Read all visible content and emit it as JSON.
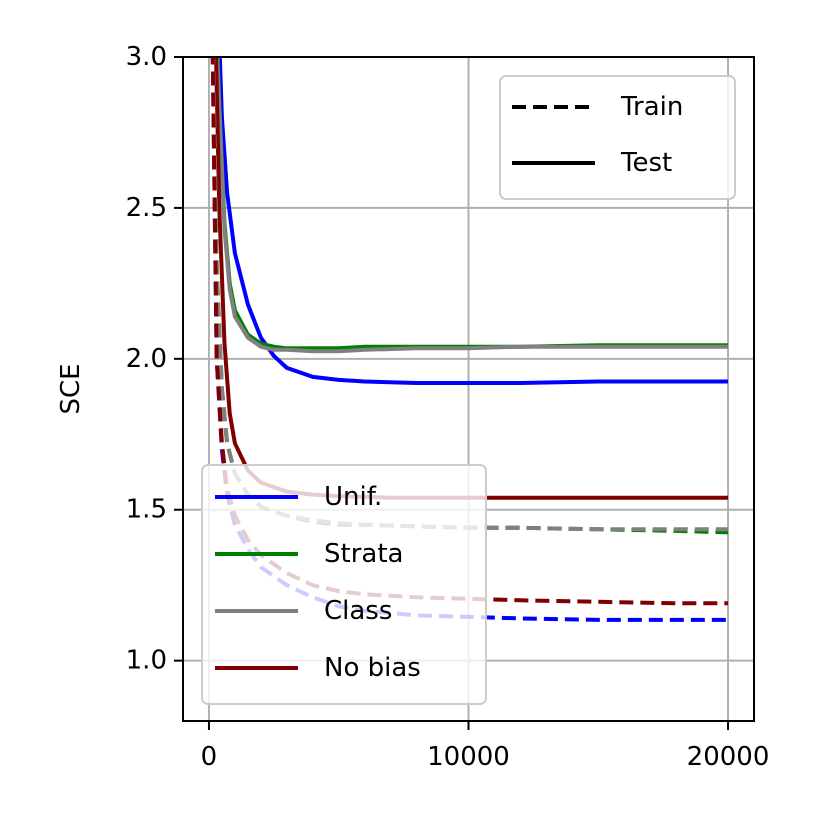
{
  "chart_data": {
    "type": "line",
    "title": "",
    "xlabel": "",
    "ylabel": "SCE",
    "xlim": [
      -1000,
      21000
    ],
    "ylim": [
      0.8,
      3.0
    ],
    "xticks": [
      0,
      10000,
      20000
    ],
    "yticks": [
      1.0,
      1.5,
      2.0,
      2.5,
      3.0
    ],
    "xtick_labels": [
      "0",
      "10000",
      "20000"
    ],
    "ytick_labels": [
      "1.0",
      "1.5",
      "2.0",
      "2.5",
      "3.0"
    ],
    "grid": true,
    "style_legend": {
      "placement": "top-right",
      "entries": [
        {
          "label": "Train",
          "dash": "dashed"
        },
        {
          "label": "Test",
          "dash": "solid"
        }
      ]
    },
    "color_legend": {
      "placement": "bottom-left",
      "entries": [
        {
          "label": "Unif.",
          "color": "#0000ff"
        },
        {
          "label": "Strata",
          "color": "#008000"
        },
        {
          "label": "Class",
          "color": "#808080"
        },
        {
          "label": "No bias",
          "color": "#800000"
        }
      ]
    },
    "series": [
      {
        "name": "Unif.",
        "split": "Test",
        "color": "#0000ff",
        "x": [
          300,
          500,
          700,
          1000,
          1500,
          2000,
          2500,
          3000,
          4000,
          5000,
          6000,
          8000,
          10000,
          12000,
          15000,
          18000,
          20000
        ],
        "y": [
          3.3,
          2.8,
          2.55,
          2.35,
          2.18,
          2.07,
          2.01,
          1.97,
          1.94,
          1.93,
          1.925,
          1.92,
          1.92,
          1.92,
          1.925,
          1.925,
          1.925
        ]
      },
      {
        "name": "Strata",
        "split": "Test",
        "color": "#008000",
        "x": [
          200,
          400,
          600,
          800,
          1000,
          1500,
          2000,
          2500,
          3000,
          4000,
          5000,
          6000,
          8000,
          10000,
          12000,
          15000,
          18000,
          20000
        ],
        "y": [
          3.3,
          2.85,
          2.45,
          2.25,
          2.16,
          2.08,
          2.05,
          2.04,
          2.035,
          2.035,
          2.035,
          2.04,
          2.04,
          2.04,
          2.04,
          2.045,
          2.045,
          2.045
        ]
      },
      {
        "name": "Class",
        "split": "Test",
        "color": "#808080",
        "x": [
          200,
          400,
          600,
          800,
          1000,
          1500,
          2000,
          2500,
          3000,
          4000,
          5000,
          6000,
          8000,
          10000,
          12000,
          15000,
          18000,
          20000
        ],
        "y": [
          3.3,
          2.83,
          2.43,
          2.23,
          2.14,
          2.07,
          2.04,
          2.03,
          2.03,
          2.025,
          2.025,
          2.03,
          2.035,
          2.035,
          2.04,
          2.04,
          2.04,
          2.04
        ]
      },
      {
        "name": "No bias",
        "split": "Test",
        "color": "#800000",
        "x": [
          200,
          400,
          600,
          800,
          1000,
          1500,
          2000,
          3000,
          4000,
          5000,
          7000,
          10000,
          15000,
          20000
        ],
        "y": [
          3.3,
          2.5,
          2.05,
          1.82,
          1.72,
          1.63,
          1.59,
          1.56,
          1.55,
          1.545,
          1.54,
          1.54,
          1.54,
          1.54
        ]
      },
      {
        "name": "Unif.",
        "split": "Train",
        "color": "#0000ff",
        "x": [
          100,
          300,
          500,
          700,
          1000,
          1500,
          2000,
          3000,
          4000,
          5000,
          6000,
          8000,
          10000,
          12000,
          15000,
          18000,
          20000
        ],
        "y": [
          3.3,
          2.0,
          1.7,
          1.55,
          1.45,
          1.37,
          1.31,
          1.25,
          1.21,
          1.18,
          1.165,
          1.15,
          1.145,
          1.14,
          1.135,
          1.135,
          1.135
        ]
      },
      {
        "name": "Strata",
        "split": "Train",
        "color": "#008000",
        "x": [
          100,
          300,
          500,
          700,
          1000,
          1500,
          2000,
          3000,
          4000,
          5000,
          6000,
          8000,
          10000,
          12000,
          15000,
          18000,
          20000
        ],
        "y": [
          3.3,
          2.3,
          1.9,
          1.72,
          1.62,
          1.55,
          1.51,
          1.48,
          1.46,
          1.45,
          1.45,
          1.445,
          1.44,
          1.44,
          1.435,
          1.43,
          1.425
        ]
      },
      {
        "name": "Class",
        "split": "Train",
        "color": "#808080",
        "x": [
          100,
          300,
          500,
          700,
          1000,
          1500,
          2000,
          3000,
          4000,
          5000,
          6000,
          8000,
          10000,
          12000,
          15000,
          18000,
          20000
        ],
        "y": [
          3.3,
          2.3,
          1.9,
          1.72,
          1.62,
          1.55,
          1.51,
          1.48,
          1.465,
          1.455,
          1.45,
          1.445,
          1.44,
          1.44,
          1.435,
          1.435,
          1.435
        ]
      },
      {
        "name": "No bias",
        "split": "Train",
        "color": "#800000",
        "x": [
          100,
          300,
          500,
          700,
          1000,
          1500,
          2000,
          3000,
          4000,
          5000,
          6000,
          8000,
          10000,
          12000,
          15000,
          18000,
          20000
        ],
        "y": [
          3.3,
          2.0,
          1.72,
          1.57,
          1.48,
          1.4,
          1.35,
          1.29,
          1.25,
          1.23,
          1.22,
          1.21,
          1.205,
          1.2,
          1.195,
          1.19,
          1.19
        ]
      }
    ]
  }
}
